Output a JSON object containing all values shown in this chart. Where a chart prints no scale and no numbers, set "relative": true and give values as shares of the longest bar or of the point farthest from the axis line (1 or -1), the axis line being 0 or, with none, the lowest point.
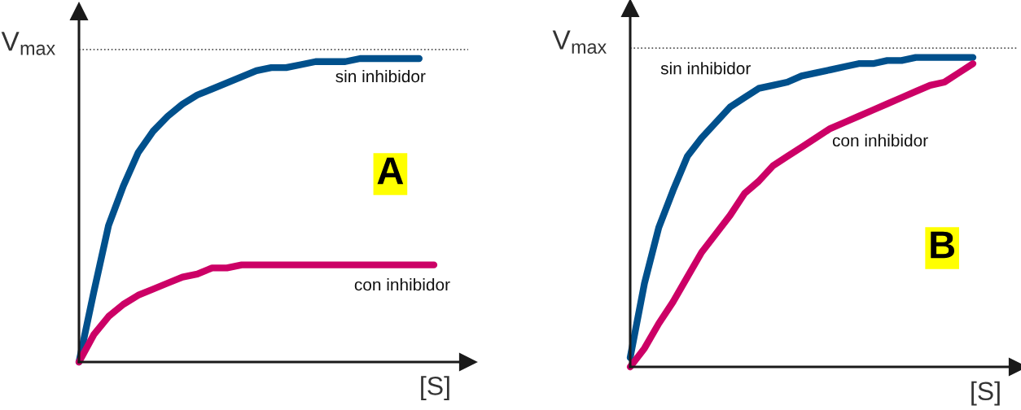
{
  "chart_data": [
    {
      "type": "line",
      "relative": true,
      "tick_labels": false,
      "xlabel": "[S]",
      "categories": [
        null,
        null,
        null,
        null,
        null,
        null,
        null,
        null,
        null,
        null,
        null,
        null,
        null,
        null,
        null,
        null,
        null,
        null,
        null,
        null,
        null,
        null,
        null,
        null,
        null
      ],
      "series": [
        {
          "name": "sin inhibidor",
          "color": "#00508c",
          "values": [
            0,
            0.23,
            0.45,
            0.58,
            0.69,
            0.76,
            0.81,
            0.85,
            0.88,
            0.9,
            0.92,
            0.94,
            0.96,
            0.97,
            0.97,
            0.98,
            0.99,
            0.99,
            0.99,
            1,
            1,
            1,
            1,
            1,
            null
          ]
        },
        {
          "name": "con inhibidor",
          "color": "#cc0066",
          "values": [
            0,
            0.09,
            0.15,
            0.19,
            0.22,
            0.24,
            0.26,
            0.28,
            0.29,
            0.31,
            0.31,
            0.32,
            0.32,
            0.32,
            0.32,
            0.32,
            0.32,
            0.32,
            0.32,
            0.32,
            0.32,
            0.32,
            0.32,
            0.32,
            0.32
          ]
        }
      ],
      "ref_lines": [
        {
          "axis": "y",
          "value": 1.03,
          "label": "V$_{max}$",
          "color": "#555555",
          "line_style": "dotted"
        }
      ],
      "annotations": [
        "A"
      ]
    },
    {
      "type": "line",
      "relative": true,
      "tick_labels": false,
      "xlabel": "[S]",
      "categories": [
        null,
        null,
        null,
        null,
        null,
        null,
        null,
        null,
        null,
        null,
        null,
        null,
        null,
        null,
        null,
        null,
        null,
        null,
        null,
        null,
        null,
        null,
        null,
        null,
        null
      ],
      "series": [
        {
          "name": "sin inhibidor",
          "color": "#00508c",
          "values": [
            0.03,
            0.27,
            0.45,
            0.57,
            0.68,
            0.74,
            0.79,
            0.84,
            0.87,
            0.9,
            0.91,
            0.92,
            0.94,
            0.95,
            0.96,
            0.97,
            0.98,
            0.98,
            0.99,
            0.99,
            1,
            1,
            1,
            1,
            1
          ]
        },
        {
          "name": "con inhibidor",
          "color": "#cc0066",
          "values": [
            0,
            0.06,
            0.14,
            0.21,
            0.29,
            0.37,
            0.43,
            0.49,
            0.56,
            0.6,
            0.65,
            0.68,
            0.71,
            0.74,
            0.77,
            0.79,
            0.81,
            0.83,
            0.85,
            0.87,
            0.89,
            0.91,
            0.92,
            0.95,
            0.98
          ]
        }
      ],
      "ref_lines": [
        {
          "axis": "y",
          "value": 1.03,
          "label": "V$_{max}$",
          "color": "#555555",
          "line_style": "dotted"
        }
      ],
      "annotations": [
        "B"
      ]
    }
  ]
}
